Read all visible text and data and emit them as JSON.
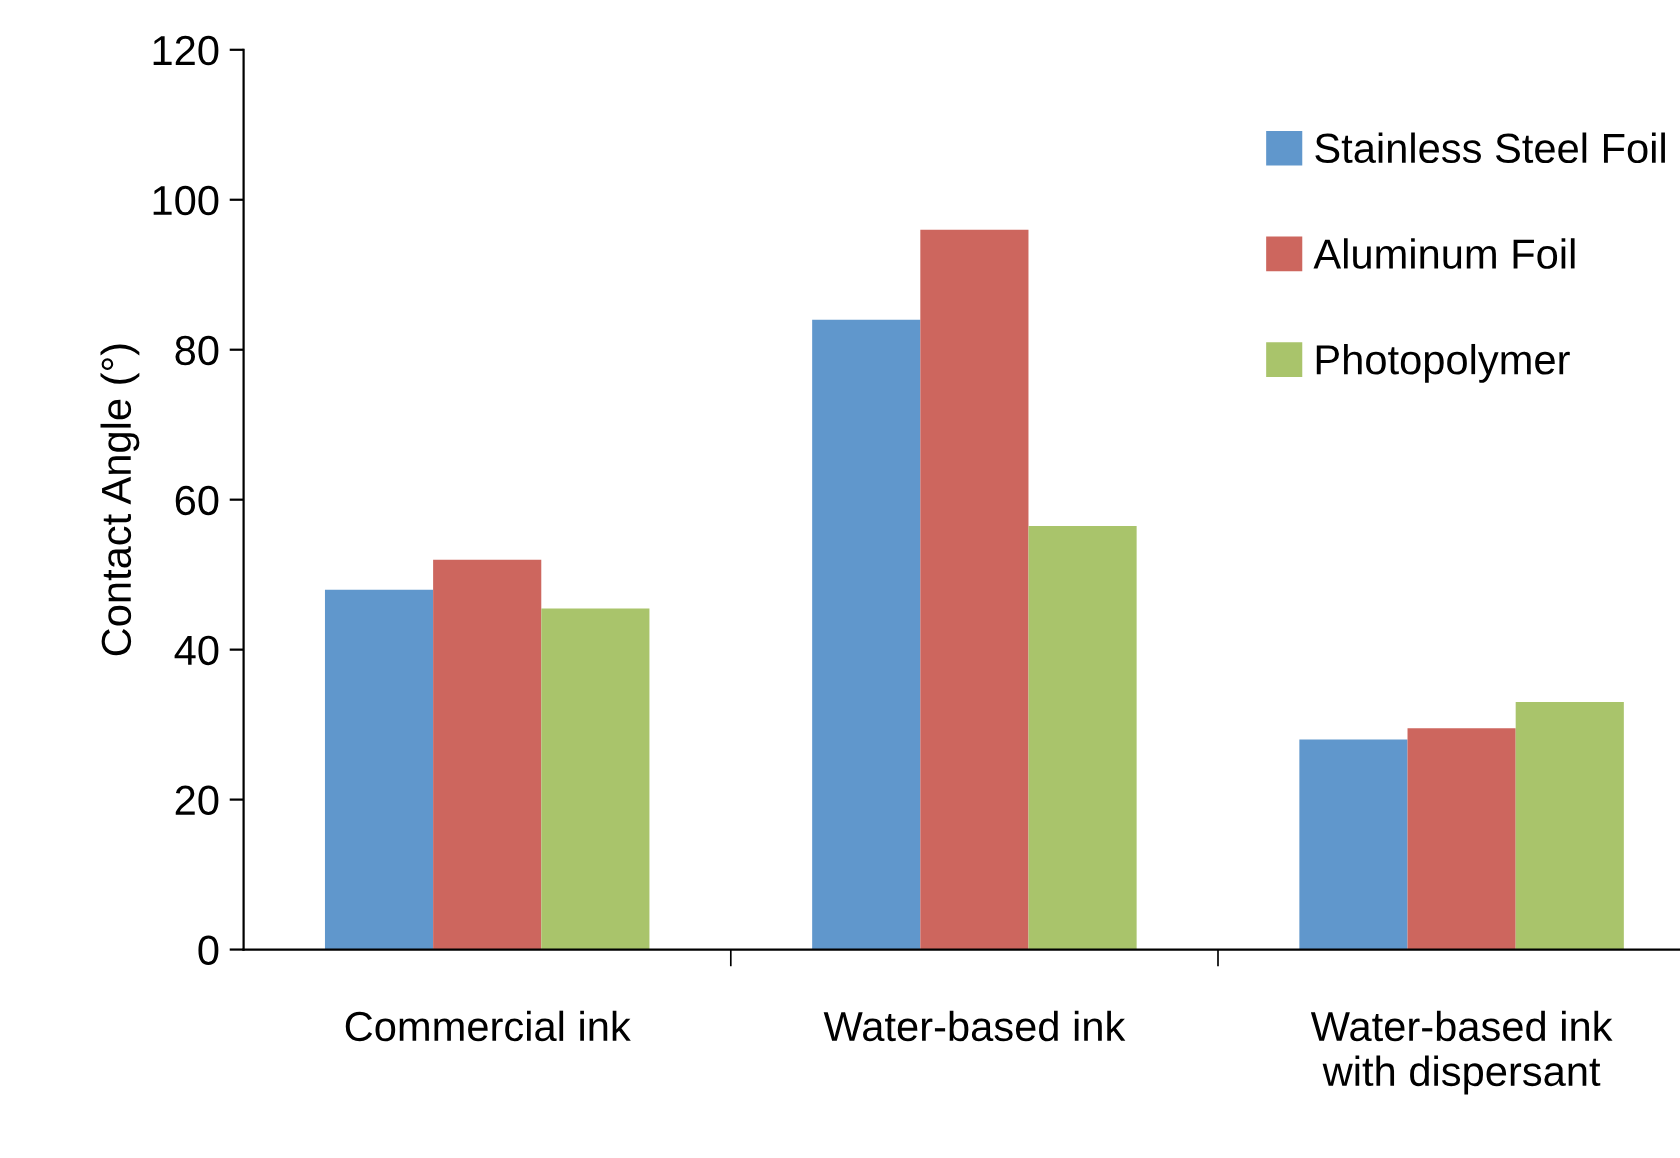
{
  "chart_data": {
    "type": "bar",
    "ylabel": "Contact Angle (°)",
    "categories": [
      "Commercial ink",
      "Water-based ink",
      "Water-based ink\nwith dispersant"
    ],
    "series": [
      {
        "name": "Stainless Steel Foil",
        "color": "#6097cc",
        "values": [
          48,
          84,
          28
        ]
      },
      {
        "name": "Aluminum Foil",
        "color": "#cd665e",
        "values": [
          52,
          96,
          29.5
        ]
      },
      {
        "name": "Photopolymer",
        "color": "#a9c46b",
        "values": [
          45.5,
          56.5,
          33
        ]
      }
    ],
    "ylim": [
      0,
      120
    ],
    "yticks": [
      0,
      20,
      40,
      60,
      80,
      100,
      120
    ],
    "grid": false,
    "legend": "top right"
  }
}
